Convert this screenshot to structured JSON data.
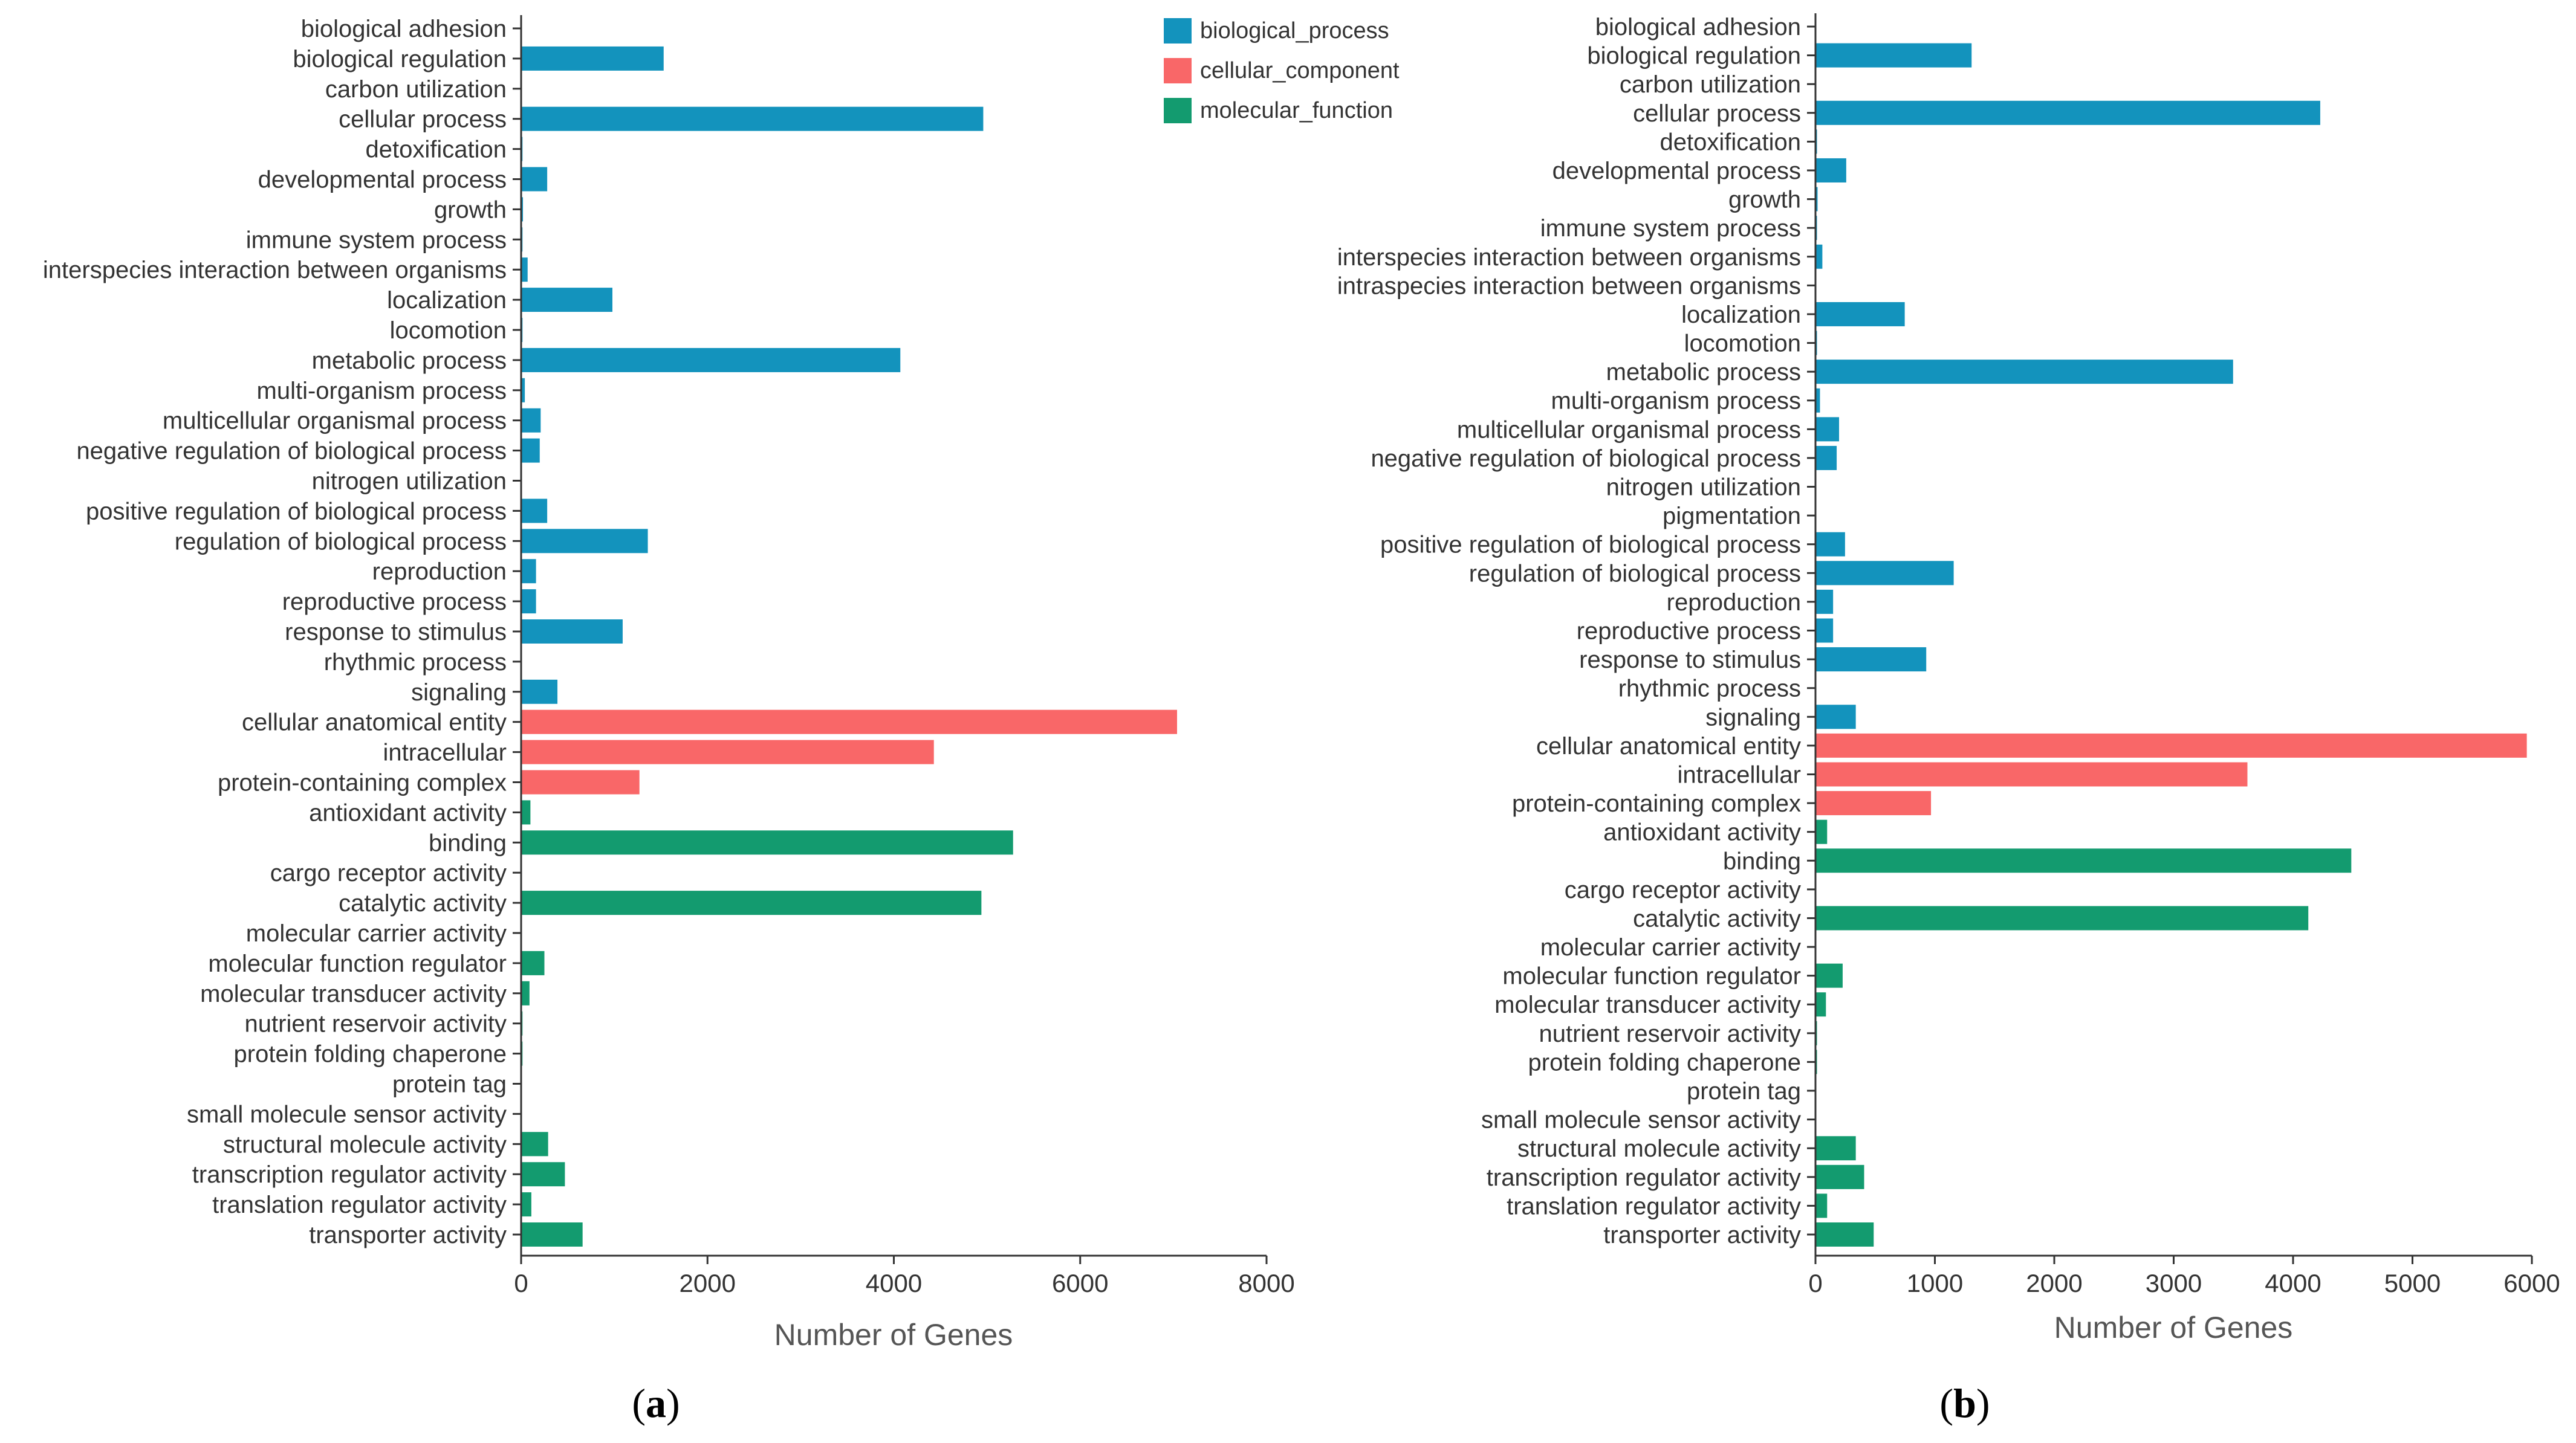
{
  "colors": {
    "biological_process": "#1393bd",
    "cellular_component": "#f96768",
    "molecular_function": "#139b6f"
  },
  "legend": [
    {
      "key": "biological_process",
      "label": "biological_process"
    },
    {
      "key": "cellular_component",
      "label": "cellular_component"
    },
    {
      "key": "molecular_function",
      "label": "molecular_function"
    }
  ],
  "chart_data": [
    {
      "type": "bar",
      "orientation": "horizontal",
      "panel_label": "a",
      "xlabel": "Number of Genes",
      "xlim": [
        0,
        8000
      ],
      "xticks": [
        0,
        2000,
        4000,
        6000,
        8000
      ],
      "legend_position": "top-right",
      "categories": [
        {
          "label": "biological adhesion",
          "value": 0,
          "group": "biological_process"
        },
        {
          "label": "biological regulation",
          "value": 1520,
          "group": "biological_process"
        },
        {
          "label": "carbon utilization",
          "value": 0,
          "group": "biological_process"
        },
        {
          "label": "cellular process",
          "value": 4950,
          "group": "biological_process"
        },
        {
          "label": "detoxification",
          "value": 5,
          "group": "biological_process"
        },
        {
          "label": "developmental process",
          "value": 270,
          "group": "biological_process"
        },
        {
          "label": "growth",
          "value": 10,
          "group": "biological_process"
        },
        {
          "label": "immune system process",
          "value": 5,
          "group": "biological_process"
        },
        {
          "label": "interspecies interaction between organisms",
          "value": 60,
          "group": "biological_process"
        },
        {
          "label": "localization",
          "value": 970,
          "group": "biological_process"
        },
        {
          "label": "locomotion",
          "value": 5,
          "group": "biological_process"
        },
        {
          "label": "metabolic process",
          "value": 4060,
          "group": "biological_process"
        },
        {
          "label": "multi-organism process",
          "value": 30,
          "group": "biological_process"
        },
        {
          "label": "multicellular organismal process",
          "value": 200,
          "group": "biological_process"
        },
        {
          "label": "negative regulation of biological process",
          "value": 190,
          "group": "biological_process"
        },
        {
          "label": "nitrogen utilization",
          "value": 0,
          "group": "biological_process"
        },
        {
          "label": "positive regulation of biological process",
          "value": 270,
          "group": "biological_process"
        },
        {
          "label": "regulation of biological process",
          "value": 1350,
          "group": "biological_process"
        },
        {
          "label": "reproduction",
          "value": 150,
          "group": "biological_process"
        },
        {
          "label": "reproductive process",
          "value": 150,
          "group": "biological_process"
        },
        {
          "label": "response to stimulus",
          "value": 1080,
          "group": "biological_process"
        },
        {
          "label": "rhythmic process",
          "value": 0,
          "group": "biological_process"
        },
        {
          "label": "signaling",
          "value": 380,
          "group": "biological_process"
        },
        {
          "label": "cellular anatomical entity",
          "value": 7030,
          "group": "cellular_component"
        },
        {
          "label": "intracellular",
          "value": 4420,
          "group": "cellular_component"
        },
        {
          "label": "protein-containing complex",
          "value": 1260,
          "group": "cellular_component"
        },
        {
          "label": "antioxidant activity",
          "value": 90,
          "group": "molecular_function"
        },
        {
          "label": "binding",
          "value": 5270,
          "group": "molecular_function"
        },
        {
          "label": "cargo receptor activity",
          "value": 0,
          "group": "molecular_function"
        },
        {
          "label": "catalytic activity",
          "value": 4930,
          "group": "molecular_function"
        },
        {
          "label": "molecular carrier activity",
          "value": 0,
          "group": "molecular_function"
        },
        {
          "label": "molecular function regulator",
          "value": 240,
          "group": "molecular_function"
        },
        {
          "label": "molecular transducer activity",
          "value": 80,
          "group": "molecular_function"
        },
        {
          "label": "nutrient reservoir activity",
          "value": 5,
          "group": "molecular_function"
        },
        {
          "label": "protein folding chaperone",
          "value": 5,
          "group": "molecular_function"
        },
        {
          "label": "protein tag",
          "value": 0,
          "group": "molecular_function"
        },
        {
          "label": "small molecule sensor activity",
          "value": 0,
          "group": "molecular_function"
        },
        {
          "label": "structural molecule activity",
          "value": 280,
          "group": "molecular_function"
        },
        {
          "label": "transcription regulator activity",
          "value": 460,
          "group": "molecular_function"
        },
        {
          "label": "translation regulator activity",
          "value": 100,
          "group": "molecular_function"
        },
        {
          "label": "transporter activity",
          "value": 650,
          "group": "molecular_function"
        }
      ]
    },
    {
      "type": "bar",
      "orientation": "horizontal",
      "panel_label": "b",
      "xlabel": "Number of Genes",
      "xlim": [
        0,
        6000
      ],
      "xticks": [
        0,
        1000,
        2000,
        3000,
        4000,
        5000,
        6000
      ],
      "categories": [
        {
          "label": "biological adhesion",
          "value": 0,
          "group": "biological_process"
        },
        {
          "label": "biological regulation",
          "value": 1300,
          "group": "biological_process"
        },
        {
          "label": "carbon utilization",
          "value": 0,
          "group": "biological_process"
        },
        {
          "label": "cellular process",
          "value": 4220,
          "group": "biological_process"
        },
        {
          "label": "detoxification",
          "value": 5,
          "group": "biological_process"
        },
        {
          "label": "developmental process",
          "value": 250,
          "group": "biological_process"
        },
        {
          "label": "growth",
          "value": 10,
          "group": "biological_process"
        },
        {
          "label": "immune system process",
          "value": 5,
          "group": "biological_process"
        },
        {
          "label": "interspecies interaction between organisms",
          "value": 50,
          "group": "biological_process"
        },
        {
          "label": "intraspecies interaction between organisms",
          "value": 0,
          "group": "biological_process"
        },
        {
          "label": "localization",
          "value": 740,
          "group": "biological_process"
        },
        {
          "label": "locomotion",
          "value": 5,
          "group": "biological_process"
        },
        {
          "label": "metabolic process",
          "value": 3490,
          "group": "biological_process"
        },
        {
          "label": "multi-organism process",
          "value": 30,
          "group": "biological_process"
        },
        {
          "label": "multicellular organismal process",
          "value": 190,
          "group": "biological_process"
        },
        {
          "label": "negative regulation of biological process",
          "value": 170,
          "group": "biological_process"
        },
        {
          "label": "nitrogen utilization",
          "value": 0,
          "group": "biological_process"
        },
        {
          "label": "pigmentation",
          "value": 0,
          "group": "biological_process"
        },
        {
          "label": "positive regulation of biological process",
          "value": 240,
          "group": "biological_process"
        },
        {
          "label": "regulation of biological process",
          "value": 1150,
          "group": "biological_process"
        },
        {
          "label": "reproduction",
          "value": 140,
          "group": "biological_process"
        },
        {
          "label": "reproductive process",
          "value": 140,
          "group": "biological_process"
        },
        {
          "label": "response to stimulus",
          "value": 920,
          "group": "biological_process"
        },
        {
          "label": "rhythmic process",
          "value": 0,
          "group": "biological_process"
        },
        {
          "label": "signaling",
          "value": 330,
          "group": "biological_process"
        },
        {
          "label": "cellular anatomical entity",
          "value": 5950,
          "group": "cellular_component"
        },
        {
          "label": "intracellular",
          "value": 3610,
          "group": "cellular_component"
        },
        {
          "label": "protein-containing complex",
          "value": 960,
          "group": "cellular_component"
        },
        {
          "label": "antioxidant activity",
          "value": 90,
          "group": "molecular_function"
        },
        {
          "label": "binding",
          "value": 4480,
          "group": "molecular_function"
        },
        {
          "label": "cargo receptor activity",
          "value": 0,
          "group": "molecular_function"
        },
        {
          "label": "catalytic activity",
          "value": 4120,
          "group": "molecular_function"
        },
        {
          "label": "molecular carrier activity",
          "value": 0,
          "group": "molecular_function"
        },
        {
          "label": "molecular function regulator",
          "value": 220,
          "group": "molecular_function"
        },
        {
          "label": "molecular transducer activity",
          "value": 80,
          "group": "molecular_function"
        },
        {
          "label": "nutrient reservoir activity",
          "value": 5,
          "group": "molecular_function"
        },
        {
          "label": "protein folding chaperone",
          "value": 5,
          "group": "molecular_function"
        },
        {
          "label": "protein tag",
          "value": 0,
          "group": "molecular_function"
        },
        {
          "label": "small molecule sensor activity",
          "value": 0,
          "group": "molecular_function"
        },
        {
          "label": "structural molecule activity",
          "value": 330,
          "group": "molecular_function"
        },
        {
          "label": "transcription regulator activity",
          "value": 400,
          "group": "molecular_function"
        },
        {
          "label": "translation regulator activity",
          "value": 90,
          "group": "molecular_function"
        },
        {
          "label": "transporter activity",
          "value": 480,
          "group": "molecular_function"
        }
      ]
    }
  ]
}
